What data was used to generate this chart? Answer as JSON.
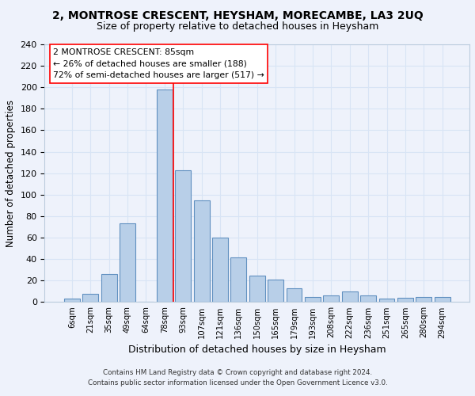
{
  "title": "2, MONTROSE CRESCENT, HEYSHAM, MORECAMBE, LA3 2UQ",
  "subtitle": "Size of property relative to detached houses in Heysham",
  "xlabel": "Distribution of detached houses by size in Heysham",
  "ylabel": "Number of detached properties",
  "footer_line1": "Contains HM Land Registry data © Crown copyright and database right 2024.",
  "footer_line2": "Contains public sector information licensed under the Open Government Licence v3.0.",
  "bar_labels": [
    "6sqm",
    "21sqm",
    "35sqm",
    "49sqm",
    "64sqm",
    "78sqm",
    "93sqm",
    "107sqm",
    "121sqm",
    "136sqm",
    "150sqm",
    "165sqm",
    "179sqm",
    "193sqm",
    "208sqm",
    "222sqm",
    "236sqm",
    "251sqm",
    "265sqm",
    "280sqm",
    "294sqm"
  ],
  "bar_values": [
    3,
    8,
    26,
    73,
    0,
    198,
    123,
    95,
    60,
    42,
    25,
    21,
    13,
    5,
    6,
    10,
    6,
    3,
    4,
    5,
    5
  ],
  "bar_color": "#b8cfe8",
  "bar_edge_color": "#6090c0",
  "annotation_line1": "2 MONTROSE CRESCENT: 85sqm",
  "annotation_line2": "← 26% of detached houses are smaller (188)",
  "annotation_line3": "72% of semi-detached houses are larger (517) →",
  "red_line_x": 5.5,
  "background_color": "#eef2fb",
  "grid_color": "#d8e4f5",
  "ylim": [
    0,
    240
  ],
  "yticks": [
    0,
    20,
    40,
    60,
    80,
    100,
    120,
    140,
    160,
    180,
    200,
    220,
    240
  ],
  "title_fontsize": 10,
  "subtitle_fontsize": 9
}
